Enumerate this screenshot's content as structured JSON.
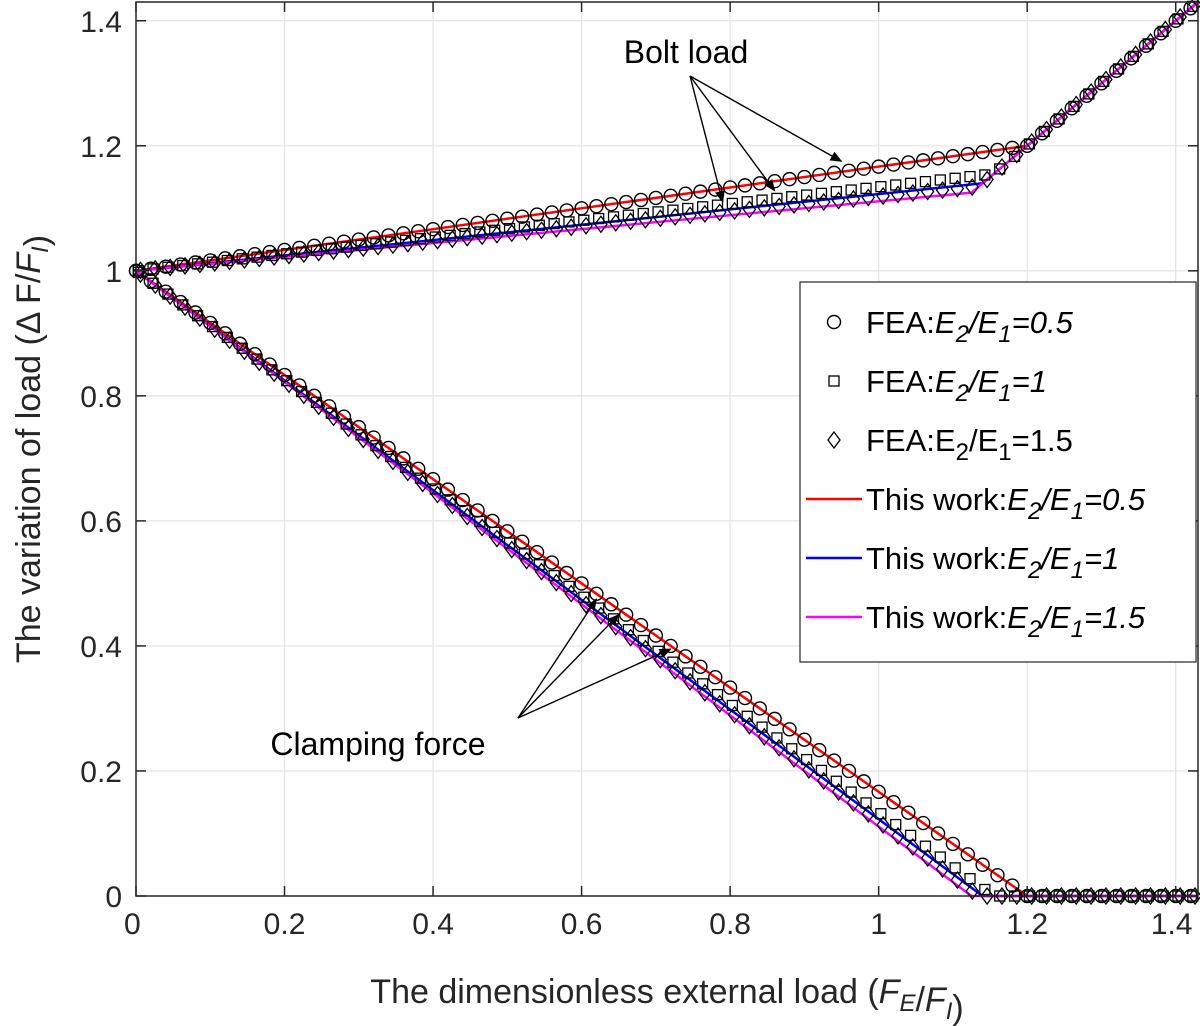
{
  "chart_data": {
    "type": "line",
    "xlabel": "The dimensionless external load (F_E/F_I)",
    "ylabel": "The variation of load (Δ F/F_I)",
    "xlim": [
      0,
      1.43
    ],
    "ylim": [
      0,
      1.43
    ],
    "xticks": [
      "0",
      "0.2",
      "0.4",
      "0.6",
      "0.8",
      "1",
      "1.2",
      "1.4"
    ],
    "yticks": [
      "0",
      "0.2",
      "0.4",
      "0.6",
      "0.8",
      "1",
      "1.2",
      "1.4"
    ],
    "grid": true,
    "legend_position": "right",
    "annotations": [
      {
        "text": "Bolt load",
        "targets": [
          [
            0.95,
            1.175
          ],
          [
            0.86,
            1.128
          ],
          [
            0.79,
            1.11
          ]
        ]
      },
      {
        "text": "Clamping force",
        "targets": [
          [
            0.62,
            0.475
          ],
          [
            0.65,
            0.45
          ],
          [
            0.72,
            0.395
          ]
        ]
      }
    ],
    "series": [
      {
        "name": "FEA:E2/E1=0.5",
        "legend": {
          "prefix": "FEA:",
          "E2": "E",
          "sub2": "2",
          "slash": "/",
          "E1": "E",
          "sub1": "1",
          "value": "=0.5"
        },
        "marker": "circle",
        "color": "#000000",
        "bolt": [
          [
            0,
            1.0
          ],
          [
            1.2,
            1.2
          ],
          [
            1.43,
            1.43
          ]
        ],
        "clamp": [
          [
            0,
            1.0
          ],
          [
            1.2,
            0.0
          ],
          [
            1.43,
            0.0
          ]
        ]
      },
      {
        "name": "FEA:E2/E1=1",
        "legend": {
          "prefix": "FEA:",
          "E2": "E",
          "sub2": "2",
          "slash": "/",
          "E1": "E",
          "sub1": "1",
          "value": "=1"
        },
        "marker": "square",
        "color": "#000000",
        "bolt": [
          [
            0,
            1.0
          ],
          [
            1.155,
            1.155
          ],
          [
            1.43,
            1.43
          ]
        ],
        "clamp": [
          [
            0,
            1.0
          ],
          [
            1.155,
            0.0
          ],
          [
            1.43,
            0.0
          ]
        ]
      },
      {
        "name": "FEA:E2/E1=1.5",
        "legend": {
          "prefix": "FEA:",
          "E2": "E",
          "sub2": "2",
          "slash": "/",
          "E1": "E",
          "sub1": "1",
          "value": "=1.5"
        },
        "marker": "diamond",
        "color": "#000000",
        "bolt": [
          [
            0,
            1.0
          ],
          [
            1.135,
            1.135
          ],
          [
            1.43,
            1.43
          ]
        ],
        "clamp": [
          [
            0,
            1.0
          ],
          [
            1.135,
            0.0
          ],
          [
            1.43,
            0.0
          ]
        ]
      },
      {
        "name": "This work:E2/E1=0.5",
        "legend": {
          "prefix": "This work:",
          "E2": "E",
          "sub2": "2",
          "slash": "/",
          "E1": "E",
          "sub1": "1",
          "value": "=0.5"
        },
        "marker": "line",
        "color": "#ff0000",
        "bolt": [
          [
            0,
            1.0
          ],
          [
            1.2,
            1.2
          ],
          [
            1.43,
            1.43
          ]
        ],
        "clamp": [
          [
            0,
            1.0
          ],
          [
            1.2,
            0.0
          ],
          [
            1.43,
            0.0
          ]
        ]
      },
      {
        "name": "This work:E2/E1=1",
        "legend": {
          "prefix": "This work:",
          "E2": "E",
          "sub2": "2",
          "slash": "/",
          "E1": "E",
          "sub1": "1",
          "value": "=1"
        },
        "marker": "line",
        "color": "#0000ff",
        "bolt": [
          [
            0,
            1.0
          ],
          [
            1.14,
            1.14
          ],
          [
            1.43,
            1.43
          ]
        ],
        "clamp": [
          [
            0,
            1.0
          ],
          [
            1.14,
            0.0
          ],
          [
            1.43,
            0.0
          ]
        ]
      },
      {
        "name": "This work:E2/E1=1.5",
        "legend": {
          "prefix": "This work:",
          "E2": "E",
          "sub2": "2",
          "slash": "/",
          "E1": "E",
          "sub1": "1",
          "value": "=1.5"
        },
        "marker": "line",
        "color": "#ff00ff",
        "bolt": [
          [
            0,
            1.0
          ],
          [
            1.125,
            1.125
          ],
          [
            1.43,
            1.43
          ]
        ],
        "clamp": [
          [
            0,
            1.0
          ],
          [
            1.125,
            0.0
          ],
          [
            1.43,
            0.0
          ]
        ]
      }
    ]
  }
}
